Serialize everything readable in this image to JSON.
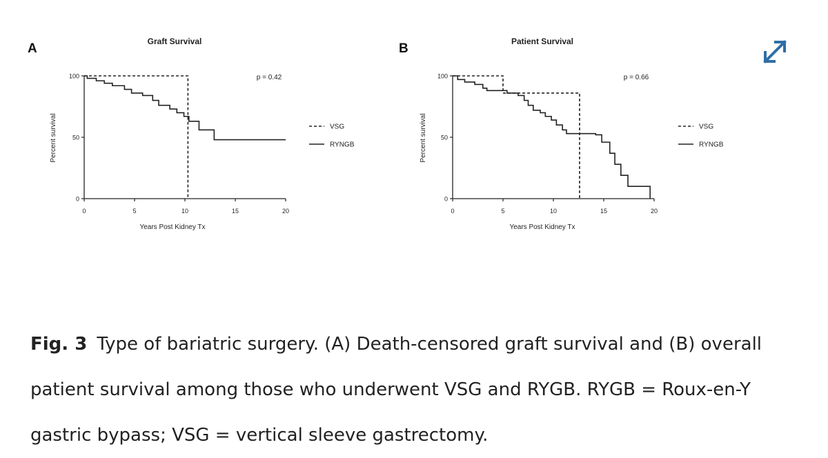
{
  "expand_icon": "expand-diagonal-arrows-icon",
  "accent_color": "#2e6ea6",
  "caption": {
    "label": "Fig. 3",
    "text": "Type of bariatric surgery. (A) Death-censored graft survival and (B) overall patient survival among those who underwent VSG and RYGB. RYGB = Roux-en-Y gastric bypass; VSG = vertical sleeve gastrectomy."
  },
  "chart_data": [
    {
      "panel": "A",
      "type": "line",
      "subtype": "kaplan-meier step",
      "title": "Graft Survival",
      "xlabel": "Years Post Kidney Tx",
      "ylabel": "Percent survival",
      "xlim": [
        0,
        20
      ],
      "ylim": [
        0,
        100
      ],
      "xticks": [
        0,
        5,
        10,
        15,
        20
      ],
      "yticks": [
        0,
        50,
        100
      ],
      "annotation": "p = 0.42",
      "legend_position": "right",
      "grid": false,
      "series": [
        {
          "name": "VSG",
          "style": "dashed",
          "steps": [
            [
              0,
              100
            ],
            [
              10.3,
              100
            ],
            [
              10.3,
              0
            ]
          ]
        },
        {
          "name": "RYNGB",
          "style": "solid",
          "steps": [
            [
              0,
              100
            ],
            [
              0.3,
              98
            ],
            [
              1.2,
              96
            ],
            [
              2.0,
              94
            ],
            [
              2.8,
              92
            ],
            [
              4.0,
              89
            ],
            [
              4.7,
              86
            ],
            [
              5.8,
              84
            ],
            [
              6.8,
              80
            ],
            [
              7.4,
              76
            ],
            [
              8.5,
              73
            ],
            [
              9.2,
              70
            ],
            [
              9.9,
              67
            ],
            [
              10.4,
              63
            ],
            [
              11.4,
              56
            ],
            [
              12.9,
              48
            ],
            [
              20,
              48
            ]
          ]
        }
      ]
    },
    {
      "panel": "B",
      "type": "line",
      "subtype": "kaplan-meier step",
      "title": "Patient Survival",
      "xlabel": "Years Post Kidney Tx",
      "ylabel": "Percent survival",
      "xlim": [
        0,
        20
      ],
      "ylim": [
        0,
        100
      ],
      "xticks": [
        0,
        5,
        10,
        15,
        20
      ],
      "yticks": [
        0,
        50,
        100
      ],
      "annotation": "p = 0.66",
      "legend_position": "right",
      "grid": false,
      "series": [
        {
          "name": "VSG",
          "style": "dashed",
          "steps": [
            [
              0,
              100
            ],
            [
              5.0,
              100
            ],
            [
              5.0,
              86
            ],
            [
              12.6,
              86
            ],
            [
              12.6,
              0
            ]
          ]
        },
        {
          "name": "RYNGB",
          "style": "solid",
          "steps": [
            [
              0,
              100
            ],
            [
              0.5,
              97
            ],
            [
              1.2,
              95
            ],
            [
              2.2,
              93
            ],
            [
              3.0,
              90
            ],
            [
              3.4,
              88
            ],
            [
              5.4,
              86
            ],
            [
              6.5,
              84
            ],
            [
              7.1,
              80
            ],
            [
              7.5,
              76
            ],
            [
              8.0,
              72
            ],
            [
              8.7,
              70
            ],
            [
              9.2,
              67
            ],
            [
              9.8,
              64
            ],
            [
              10.3,
              60
            ],
            [
              10.9,
              56
            ],
            [
              11.3,
              53
            ],
            [
              12.2,
              53
            ],
            [
              14.2,
              52
            ],
            [
              14.8,
              46
            ],
            [
              15.6,
              37
            ],
            [
              16.1,
              28
            ],
            [
              16.7,
              19
            ],
            [
              17.4,
              10
            ],
            [
              19.6,
              10
            ],
            [
              19.6,
              0
            ]
          ]
        }
      ]
    }
  ]
}
